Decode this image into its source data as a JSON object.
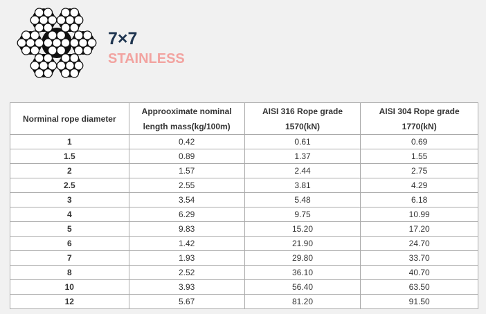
{
  "header": {
    "title": "7×7",
    "subtitle": "STAINLESS"
  },
  "table": {
    "columns": [
      [
        "Norminal rope diameter"
      ],
      [
        "Approoximate nominal",
        "length mass(kg/100m)"
      ],
      [
        "AISI 316 Rope grade",
        "1570(kN)"
      ],
      [
        "AISI 304 Rope grade",
        "1770(kN)"
      ]
    ],
    "rows": [
      [
        "1",
        "0.42",
        "0.61",
        "0.69"
      ],
      [
        "1.5",
        "0.89",
        "1.37",
        "1.55"
      ],
      [
        "2",
        "1.57",
        "2.44",
        "2.75"
      ],
      [
        "2.5",
        "2.55",
        "3.81",
        "4.29"
      ],
      [
        "3",
        "3.54",
        "5.48",
        "6.18"
      ],
      [
        "4",
        "6.29",
        "9.75",
        "10.99"
      ],
      [
        "5",
        "9.83",
        "15.20",
        "17.20"
      ],
      [
        "6",
        "1.42",
        "21.90",
        "24.70"
      ],
      [
        "7",
        "1.93",
        "29.80",
        "33.70"
      ],
      [
        "8",
        "2.52",
        "36.10",
        "40.70"
      ],
      [
        "10",
        "3.93",
        "56.40",
        "63.50"
      ],
      [
        "12",
        "5.67",
        "81.20",
        "91.50"
      ]
    ]
  }
}
